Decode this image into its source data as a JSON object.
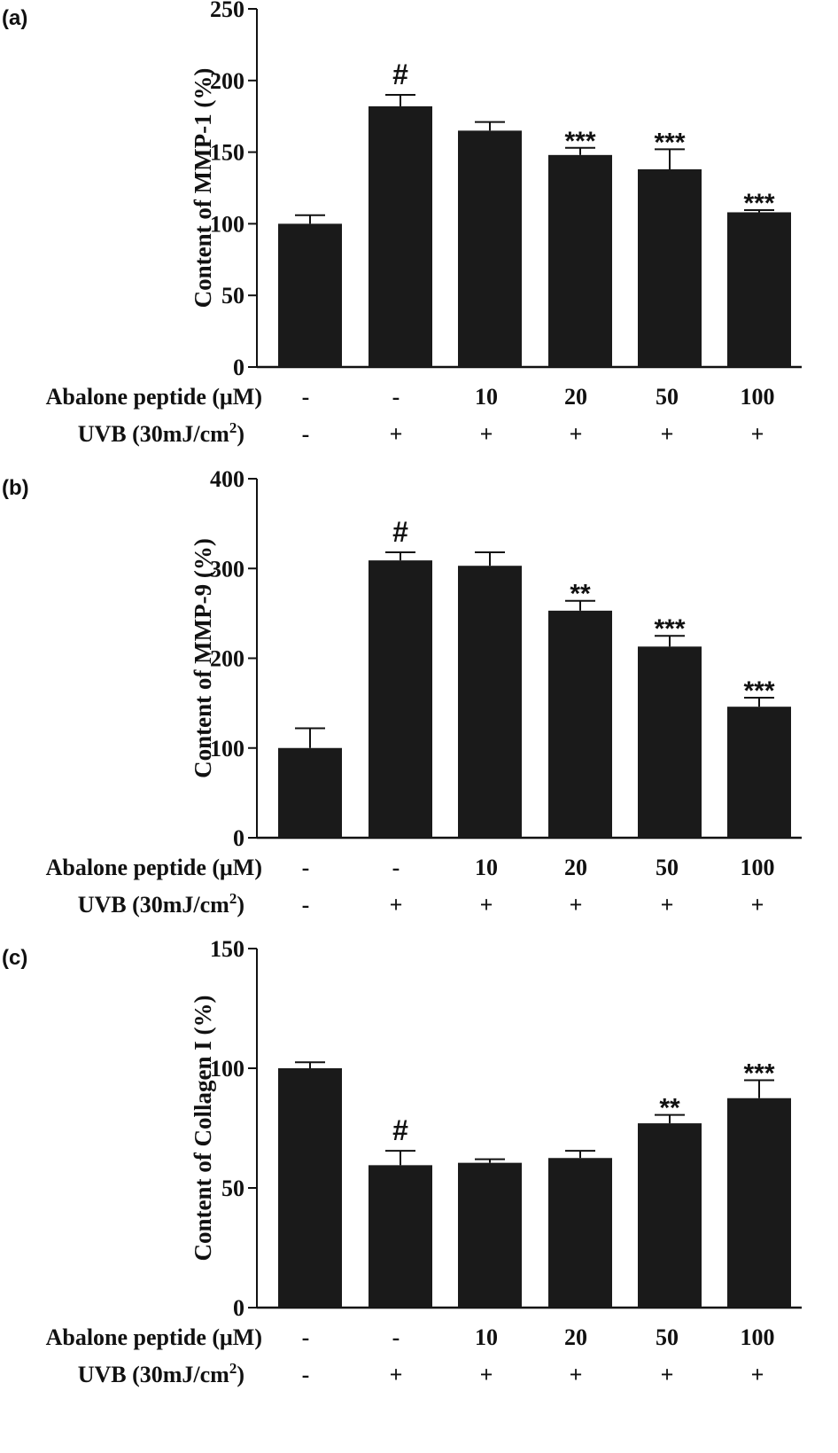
{
  "chart_data": [
    {
      "type": "bar",
      "panel_label": "(a)",
      "ylabel": "Content of MMP-1 (%)",
      "ylim": [
        0,
        250
      ],
      "yticks": [
        "0",
        "50",
        "100",
        "150",
        "200",
        "250"
      ],
      "values": [
        100,
        182,
        165,
        148,
        138,
        108
      ],
      "errors": [
        6,
        8,
        6,
        5,
        14,
        1.5
      ],
      "annotations": [
        "",
        "#",
        "",
        "***",
        "***",
        "***"
      ]
    },
    {
      "type": "bar",
      "panel_label": "(b)",
      "ylabel": "Content of MMP-9 (%)",
      "ylim": [
        0,
        400
      ],
      "yticks": [
        "0",
        "100",
        "200",
        "300",
        "400"
      ],
      "values": [
        100,
        309,
        303,
        253,
        213,
        146
      ],
      "errors": [
        22,
        9,
        15,
        11,
        12,
        10
      ],
      "annotations": [
        "",
        "#",
        "",
        "**",
        "***",
        "***"
      ]
    },
    {
      "type": "bar",
      "panel_label": "(c)",
      "ylabel": "Content of Collagen I (%)",
      "ylim": [
        0,
        150
      ],
      "yticks": [
        "0",
        "50",
        "100",
        "150"
      ],
      "values": [
        100,
        59.5,
        60.5,
        62.5,
        77,
        87.5
      ],
      "errors": [
        2.5,
        6,
        1.5,
        3,
        3.5,
        7.5
      ],
      "annotations": [
        "",
        "#",
        "",
        "",
        "**",
        "***"
      ]
    }
  ],
  "row_labels": {
    "peptide": "Abalone peptide (μM)",
    "uvb_prefix": "UVB (30mJ/cm",
    "uvb_sup": "2",
    "uvb_suffix": ")"
  },
  "peptide_values": [
    "-",
    "-",
    "10",
    "20",
    "50",
    "100"
  ],
  "uvb_values": [
    "-",
    "+",
    "+",
    "+",
    "+",
    "+"
  ]
}
